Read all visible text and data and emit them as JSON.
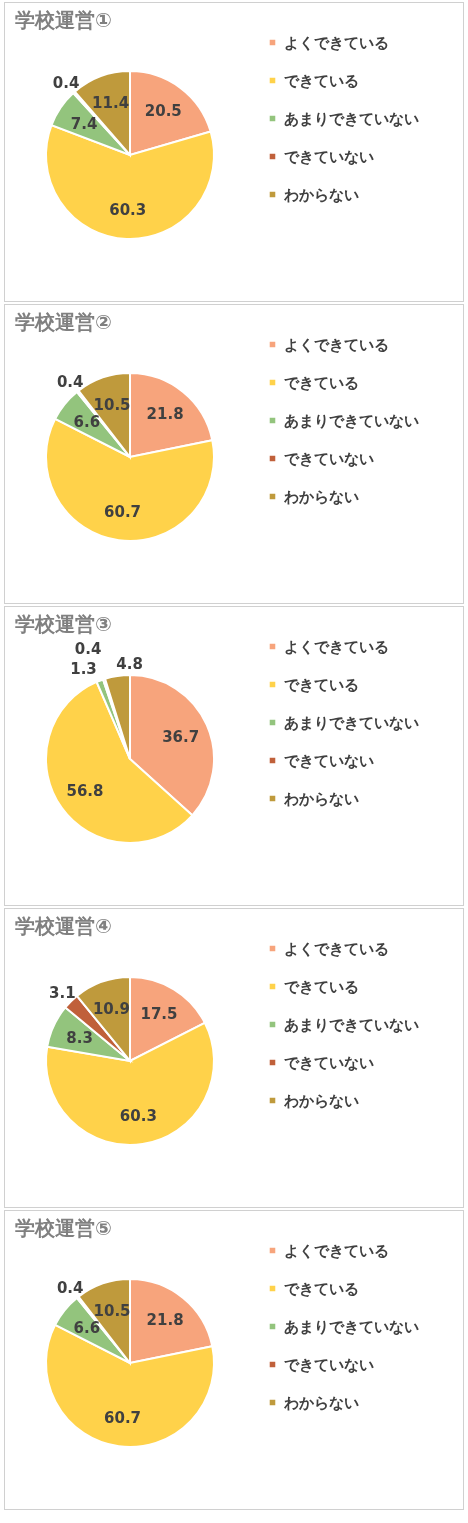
{
  "chart_data": [
    {
      "type": "pie",
      "title": "学校運営①",
      "categories": [
        "よくできている",
        "できている",
        "あまりできていない",
        "できていない",
        "わからない"
      ],
      "values": [
        20.5,
        60.3,
        7.4,
        0.4,
        11.4
      ],
      "colors": [
        "#f7a47c",
        "#ffd24a",
        "#93c47d",
        "#c0603a",
        "#bf9a3c"
      ],
      "data_labels": true,
      "legend": "right"
    },
    {
      "type": "pie",
      "title": "学校運営②",
      "categories": [
        "よくできている",
        "できている",
        "あまりできていない",
        "できていない",
        "わからない"
      ],
      "values": [
        21.8,
        60.7,
        6.6,
        0.4,
        10.5
      ],
      "colors": [
        "#f7a47c",
        "#ffd24a",
        "#93c47d",
        "#c0603a",
        "#bf9a3c"
      ],
      "data_labels": true,
      "legend": "right"
    },
    {
      "type": "pie",
      "title": "学校運営③",
      "categories": [
        "よくできている",
        "できている",
        "あまりできていない",
        "できていない",
        "わからない"
      ],
      "values": [
        36.7,
        56.8,
        1.3,
        0.4,
        4.8
      ],
      "colors": [
        "#f7a47c",
        "#ffd24a",
        "#93c47d",
        "#c0603a",
        "#bf9a3c"
      ],
      "data_labels": true,
      "legend": "right"
    },
    {
      "type": "pie",
      "title": "学校運営④",
      "categories": [
        "よくできている",
        "できている",
        "あまりできていない",
        "できていない",
        "わからない"
      ],
      "values": [
        17.5,
        60.3,
        8.3,
        3.1,
        10.9
      ],
      "colors": [
        "#f7a47c",
        "#ffd24a",
        "#93c47d",
        "#c0603a",
        "#bf9a3c"
      ],
      "data_labels": true,
      "legend": "right"
    },
    {
      "type": "pie",
      "title": "学校運営⑤",
      "categories": [
        "よくできている",
        "できている",
        "あまりできていない",
        "できていない",
        "わからない"
      ],
      "values": [
        21.8,
        60.7,
        6.6,
        0.4,
        10.5
      ],
      "colors": [
        "#f7a47c",
        "#ffd24a",
        "#93c47d",
        "#c0603a",
        "#bf9a3c"
      ],
      "data_labels": true,
      "legend": "right"
    }
  ]
}
